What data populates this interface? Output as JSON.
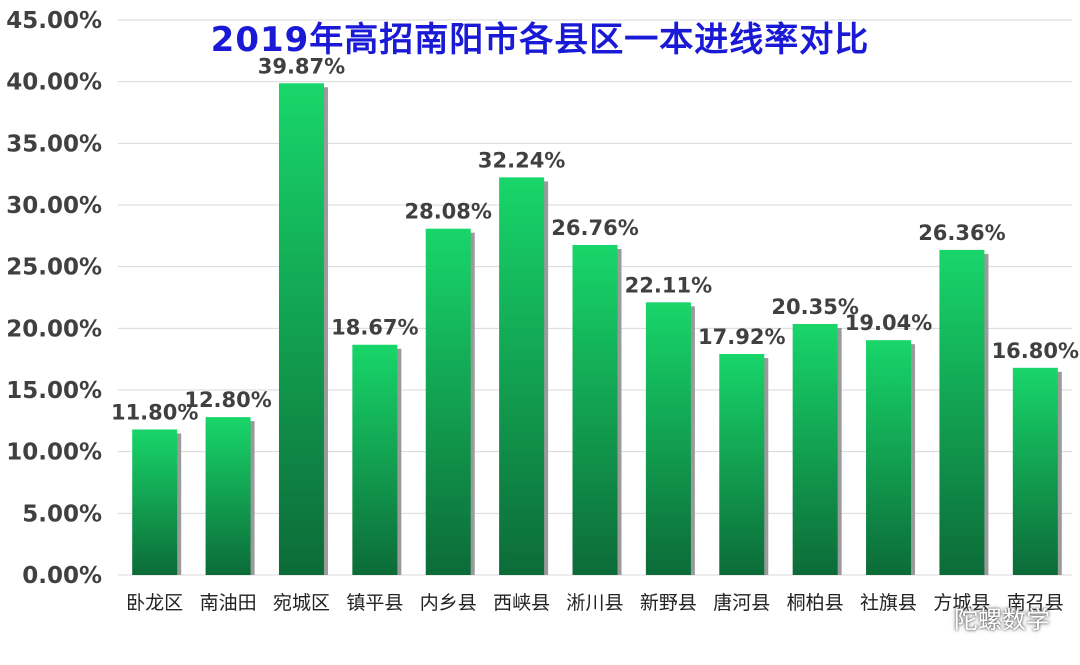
{
  "title": "2019年高招南阳市各县区一本进线率对比",
  "watermark": "陀螺数学",
  "colors": {
    "bar_top": "#18d66a",
    "bar_bottom": "#0c6b38",
    "shadow": "#9a9a9a",
    "grid": "#d9d9d9",
    "label": "#404040"
  },
  "chart_data": {
    "type": "bar",
    "categories": [
      "卧龙区",
      "南油田",
      "宛城区",
      "镇平县",
      "内乡县",
      "西峡县",
      "淅川县",
      "新野县",
      "唐河县",
      "桐柏县",
      "社旗县",
      "方城县",
      "南召县"
    ],
    "values": [
      11.8,
      12.8,
      39.87,
      18.67,
      28.08,
      32.24,
      26.76,
      22.11,
      17.92,
      20.35,
      19.04,
      26.36,
      16.8
    ],
    "value_labels": [
      "11.80%",
      "12.80%",
      "39.87%",
      "18.67%",
      "28.08%",
      "32.24%",
      "26.76%",
      "22.11%",
      "17.92%",
      "20.35%",
      "19.04%",
      "26.36%",
      "16.80%"
    ],
    "ylim": [
      0,
      45
    ],
    "yticks": [
      "0.00%",
      "5.00%",
      "10.00%",
      "15.00%",
      "20.00%",
      "25.00%",
      "30.00%",
      "35.00%",
      "40.00%",
      "45.00%"
    ],
    "grid": true,
    "legend": "none"
  }
}
